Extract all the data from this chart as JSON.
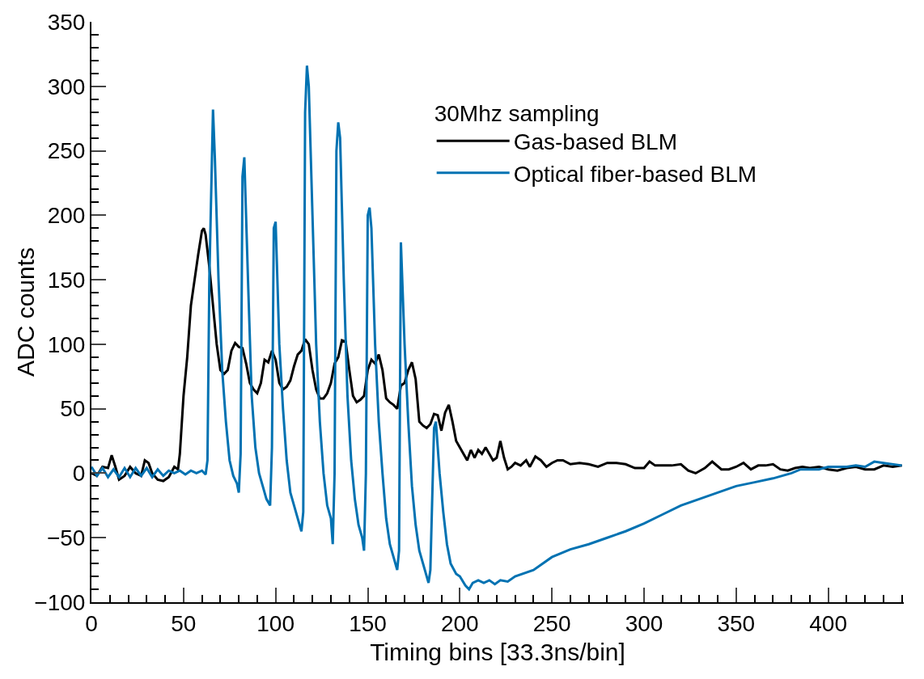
{
  "chart_data": {
    "type": "line",
    "xlabel": "Timing bins [33.3ns/bin]",
    "ylabel": "ADC counts",
    "legend_title": "30Mhz sampling",
    "legend": "top right",
    "grid": false,
    "marker": "none",
    "line_style": "solid",
    "xlim": [
      0,
      441
    ],
    "xticks": [
      0,
      50,
      100,
      150,
      200,
      250,
      300,
      350,
      400
    ],
    "ylim": [
      -100,
      350
    ],
    "yticks": [
      {
        "value": -100,
        "label": "−100"
      },
      {
        "value": -50,
        "label": "−50"
      },
      0,
      50,
      100,
      150,
      200,
      250,
      300,
      350
    ],
    "series": [
      {
        "name": "Gas-based BLM",
        "color": "#000000",
        "x": [
          0,
          3,
          6,
          9,
          11,
          13,
          15,
          18,
          21,
          24,
          27,
          29,
          31,
          33,
          36,
          39,
          42,
          45,
          47,
          48,
          50,
          52,
          54,
          56,
          58,
          60,
          61,
          62,
          64,
          66,
          68,
          70,
          72,
          74,
          76,
          78,
          80,
          82,
          84,
          86,
          88,
          90,
          92,
          94,
          96,
          98,
          100,
          102,
          104,
          106,
          108,
          110,
          112,
          114,
          116,
          118,
          120,
          122,
          124,
          126,
          128,
          130,
          132,
          134,
          136,
          138,
          140,
          142,
          144,
          146,
          148,
          150,
          152,
          154,
          156,
          158,
          160,
          162,
          164,
          166,
          168,
          170,
          172,
          174,
          176,
          178,
          180,
          182,
          184,
          186,
          188,
          190,
          192,
          194,
          196,
          198,
          200,
          202,
          204,
          206,
          208,
          210,
          212,
          214,
          216,
          218,
          220,
          222,
          224,
          226,
          228,
          230,
          233,
          236,
          238,
          241,
          244,
          247,
          250,
          253,
          256,
          260,
          265,
          270,
          275,
          280,
          285,
          290,
          295,
          300,
          303,
          306,
          310,
          315,
          320,
          324,
          328,
          333,
          337,
          342,
          346,
          350,
          354,
          358,
          362,
          366,
          370,
          374,
          378,
          382,
          386,
          390,
          395,
          400,
          405,
          410,
          415,
          420,
          425,
          430,
          435,
          440
        ],
        "values": [
          0,
          -2,
          5,
          4,
          14,
          5,
          -5,
          -2,
          5,
          0,
          -2,
          10,
          8,
          0,
          -5,
          -6,
          -3,
          5,
          3,
          15,
          60,
          90,
          130,
          150,
          170,
          188,
          190,
          185,
          160,
          130,
          100,
          80,
          77,
          80,
          95,
          101,
          98,
          97,
          85,
          70,
          65,
          62,
          70,
          88,
          86,
          95,
          88,
          70,
          65,
          67,
          72,
          83,
          92,
          95,
          104,
          100,
          80,
          65,
          58,
          58,
          62,
          70,
          85,
          90,
          103,
          102,
          80,
          60,
          55,
          57,
          60,
          80,
          88,
          85,
          92,
          80,
          58,
          55,
          53,
          50,
          68,
          70,
          80,
          86,
          73,
          40,
          37,
          35,
          38,
          46,
          45,
          33,
          47,
          53,
          40,
          25,
          20,
          15,
          10,
          18,
          12,
          18,
          15,
          20,
          15,
          10,
          12,
          25,
          12,
          3,
          5,
          8,
          6,
          10,
          5,
          13,
          10,
          5,
          8,
          10,
          10,
          7,
          8,
          7,
          5,
          8,
          8,
          7,
          4,
          4,
          9,
          6,
          6,
          6,
          7,
          2,
          0,
          4,
          9,
          3,
          3,
          5,
          8,
          3,
          6,
          6,
          7,
          3,
          2,
          4,
          5,
          4,
          5,
          3,
          2,
          4,
          5,
          3,
          3,
          6,
          5,
          6
        ]
      },
      {
        "name": "Optical fiber-based BLM",
        "color": "#0072b2",
        "x": [
          0,
          3,
          6,
          9,
          12,
          15,
          18,
          21,
          24,
          27,
          30,
          33,
          36,
          39,
          42,
          45,
          48,
          51,
          54,
          57,
          60,
          62,
          63,
          64,
          66,
          67,
          69,
          71,
          73,
          75,
          77,
          79,
          80,
          81,
          82,
          83,
          85,
          87,
          89,
          91,
          93,
          95,
          97,
          98,
          99,
          100,
          102,
          104,
          106,
          108,
          110,
          112,
          114,
          115,
          116,
          117,
          118,
          120,
          122,
          124,
          126,
          128,
          130,
          131,
          132,
          133,
          134,
          135,
          137,
          139,
          141,
          143,
          145,
          147,
          148,
          149,
          150,
          151,
          152,
          154,
          156,
          158,
          160,
          162,
          164,
          166,
          167,
          168,
          170,
          172,
          174,
          176,
          178,
          180,
          183,
          184,
          186,
          187,
          189,
          191,
          193,
          195,
          198,
          200,
          203,
          205,
          207,
          210,
          213,
          216,
          219,
          222,
          226,
          230,
          240,
          250,
          260,
          270,
          280,
          290,
          300,
          310,
          320,
          330,
          340,
          350,
          360,
          370,
          375,
          380,
          385,
          390,
          395,
          400,
          410,
          415,
          420,
          425,
          430,
          440
        ],
        "values": [
          5,
          -2,
          4,
          -3,
          3,
          -3,
          4,
          -3,
          4,
          -2,
          4,
          -3,
          3,
          -2,
          2,
          0,
          2,
          -1,
          2,
          0,
          2,
          -1,
          10,
          150,
          282,
          245,
          150,
          80,
          40,
          10,
          -2,
          -8,
          -15,
          15,
          230,
          245,
          150,
          60,
          20,
          0,
          -10,
          -20,
          -25,
          20,
          190,
          195,
          100,
          50,
          10,
          -15,
          -25,
          -35,
          -45,
          -30,
          280,
          316,
          300,
          200,
          100,
          40,
          0,
          -25,
          -35,
          -55,
          0,
          250,
          272,
          260,
          150,
          60,
          10,
          -20,
          -40,
          -50,
          -60,
          0,
          200,
          206,
          190,
          100,
          40,
          0,
          -35,
          -55,
          -65,
          -75,
          -60,
          179,
          100,
          40,
          -10,
          -40,
          -60,
          -70,
          -85,
          -75,
          35,
          40,
          0,
          -30,
          -55,
          -70,
          -78,
          -80,
          -87,
          -90,
          -85,
          -83,
          -85,
          -83,
          -86,
          -83,
          -84,
          -80,
          -75,
          -65,
          -59,
          -55,
          -50,
          -45,
          -39,
          -32,
          -25,
          -20,
          -15,
          -10,
          -7,
          -4,
          -2,
          0,
          3,
          3,
          3,
          5,
          5,
          6,
          5,
          9,
          8,
          6
        ]
      }
    ]
  }
}
